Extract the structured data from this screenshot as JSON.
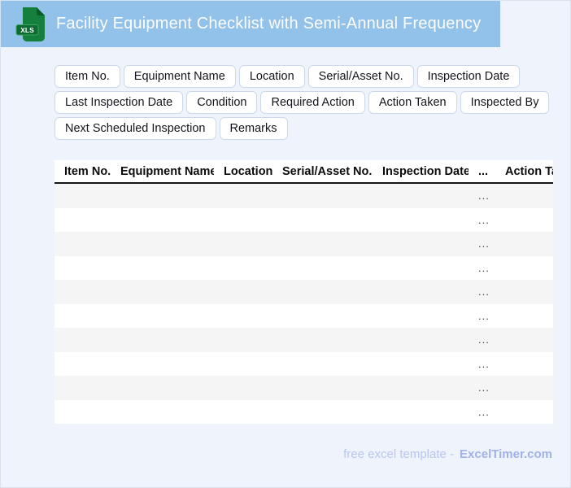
{
  "header": {
    "title": "Facility Equipment Checklist with Semi-Annual Frequency",
    "icon_label": "XLS"
  },
  "field_chips": {
    "rows": [
      [
        "Item No.",
        "Equipment Name",
        "Location",
        "Serial/Asset No.",
        "Inspection Date"
      ],
      [
        "Last Inspection Date",
        "Condition",
        "Required Action",
        "Action Taken",
        "Inspected By"
      ],
      [
        "Next Scheduled Inspection",
        "Remarks"
      ]
    ]
  },
  "table": {
    "columns": [
      "Item No.",
      "Equipment Name",
      "Location",
      "Serial/Asset No.",
      "Inspection Date",
      "...",
      "Action Taken"
    ],
    "row_count": 10,
    "row_placeholder": "..."
  },
  "footer": {
    "text": "free excel template -",
    "brand": "ExcelTimer.com"
  },
  "colors": {
    "banner": "#92c1e9",
    "page_background": "#eff4fc",
    "row_stripe": "#f5f5f5",
    "chip_border": "#cbd8ea",
    "footer_text": "#b9c5f1",
    "footer_brand": "#a1b1e9",
    "icon_green": "#15803d",
    "icon_badge_green": "#0e6b31"
  }
}
